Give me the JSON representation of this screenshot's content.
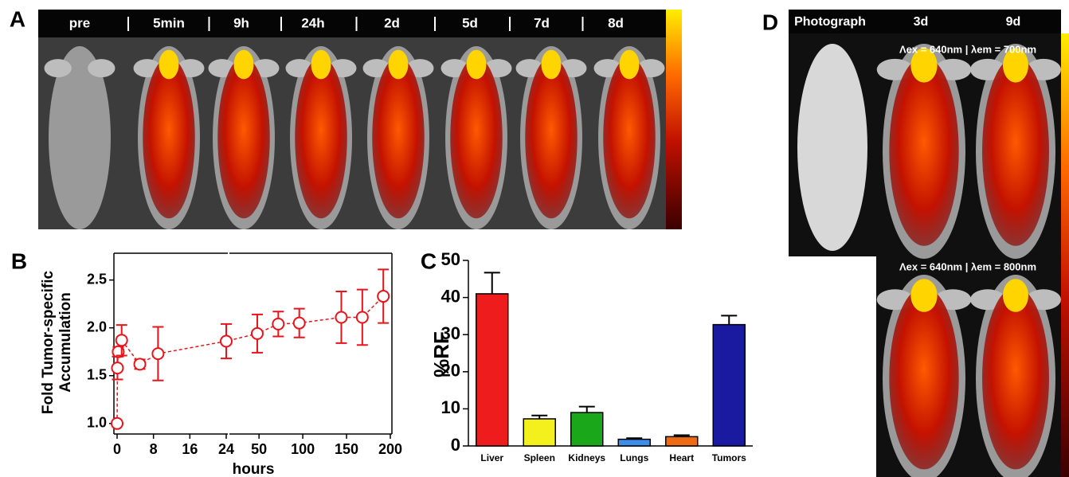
{
  "panel_a": {
    "label": "A",
    "timepoints": [
      "pre",
      "5min",
      "9h",
      "24h",
      "2d",
      "5d",
      "7d",
      "8d"
    ]
  },
  "panel_d": {
    "label": "D",
    "columns": [
      "Photograph",
      "3d",
      "9d"
    ],
    "settings": [
      "Λex = 640nm | λem = 700nm",
      "Λex = 640nm | λem = 800nm"
    ]
  },
  "chart_data": [
    {
      "type": "errorline",
      "panel": "B",
      "ylabel": [
        "Fold Tumor-specific",
        "Accumulation"
      ],
      "xlabel": "hours",
      "x": [
        0,
        0.08,
        0.25,
        1,
        5,
        9,
        24,
        48,
        72,
        96,
        144,
        168,
        192
      ],
      "values": [
        1.0,
        1.58,
        1.75,
        1.87,
        1.62,
        1.73,
        1.86,
        1.94,
        2.04,
        2.05,
        2.11,
        2.11,
        2.33
      ],
      "errors": [
        0,
        0.12,
        0.05,
        0.16,
        0.05,
        0.28,
        0.18,
        0.2,
        0.13,
        0.15,
        0.27,
        0.29,
        0.28
      ],
      "color": "#e8141b",
      "broken_x": true,
      "xlim": [
        [
          0,
          24
        ],
        [
          18,
          200
        ]
      ],
      "xticks": [
        [
          0,
          8,
          16,
          24
        ],
        [
          50,
          100,
          150,
          200
        ]
      ],
      "ylim": [
        0.89,
        2.78
      ],
      "yticks": [
        {
          "value": 1,
          "label": "1.0"
        },
        1.5,
        {
          "value": 2,
          "label": "2.0"
        },
        2.5
      ]
    },
    {
      "type": "bar",
      "panel": "C",
      "ylabel": "%RF",
      "categories": [
        "Liver",
        "Spleen",
        "Kidneys",
        "Lungs",
        "Heart",
        "Tumors"
      ],
      "values": [
        41,
        7.3,
        9,
        1.8,
        2.5,
        32.7
      ],
      "errors": [
        5.7,
        0.9,
        1.6,
        0.3,
        0.4,
        2.4
      ],
      "colors": [
        "#ee1c1c",
        "#f4f01e",
        "#1aa81a",
        "#3e8ee8",
        "#ef6a14",
        "#1a1aa0"
      ],
      "ylim": [
        0,
        50
      ],
      "yticks": [
        0,
        10,
        20,
        30,
        40,
        50
      ]
    }
  ]
}
